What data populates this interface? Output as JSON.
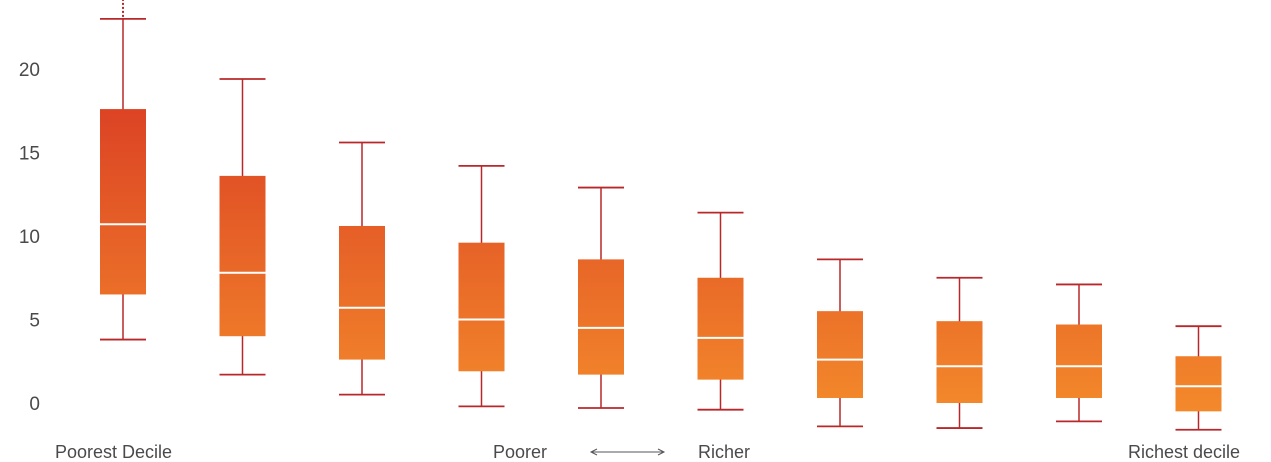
{
  "chart_data": {
    "type": "box",
    "title": "",
    "xlabel": "",
    "ylabel": "",
    "ylim": [
      -2,
      24
    ],
    "yticks": [
      0,
      5,
      10,
      15,
      20
    ],
    "grid": false,
    "legend": "none",
    "bottom_labels": {
      "left": "Poorest Decile",
      "middle_left": "Poorer",
      "middle_right": "Richer",
      "right": "Richest decile"
    },
    "boxes": [
      {
        "whisker_low": 3.8,
        "q1": 6.5,
        "median": 10.7,
        "q3": 17.6,
        "whisker_high": 23.0,
        "outlier_trail": true
      },
      {
        "whisker_low": 1.7,
        "q1": 4.0,
        "median": 7.8,
        "q3": 13.6,
        "whisker_high": 19.4
      },
      {
        "whisker_low": 0.5,
        "q1": 2.6,
        "median": 5.7,
        "q3": 10.6,
        "whisker_high": 15.6
      },
      {
        "whisker_low": -0.2,
        "q1": 1.9,
        "median": 5.0,
        "q3": 9.6,
        "whisker_high": 14.2
      },
      {
        "whisker_low": -0.3,
        "q1": 1.7,
        "median": 4.5,
        "q3": 8.6,
        "whisker_high": 12.9
      },
      {
        "whisker_low": -0.4,
        "q1": 1.4,
        "median": 3.9,
        "q3": 7.5,
        "whisker_high": 11.4
      },
      {
        "whisker_low": -1.4,
        "q1": 0.3,
        "median": 2.6,
        "q3": 5.5,
        "whisker_high": 8.6
      },
      {
        "whisker_low": -1.5,
        "q1": 0.0,
        "median": 2.2,
        "q3": 4.9,
        "whisker_high": 7.5
      },
      {
        "whisker_low": -1.1,
        "q1": 0.3,
        "median": 2.2,
        "q3": 4.7,
        "whisker_high": 7.1
      },
      {
        "whisker_low": -1.6,
        "q1": -0.5,
        "median": 1.0,
        "q3": 2.8,
        "whisker_high": 4.6
      }
    ],
    "colors": {
      "whisker": "#b8282a",
      "gradient_top": "#d42a22",
      "gradient_bottom": "#f7952c",
      "median": "#ffffff",
      "text": "#4a4a4a",
      "arrow": "#555555"
    }
  }
}
